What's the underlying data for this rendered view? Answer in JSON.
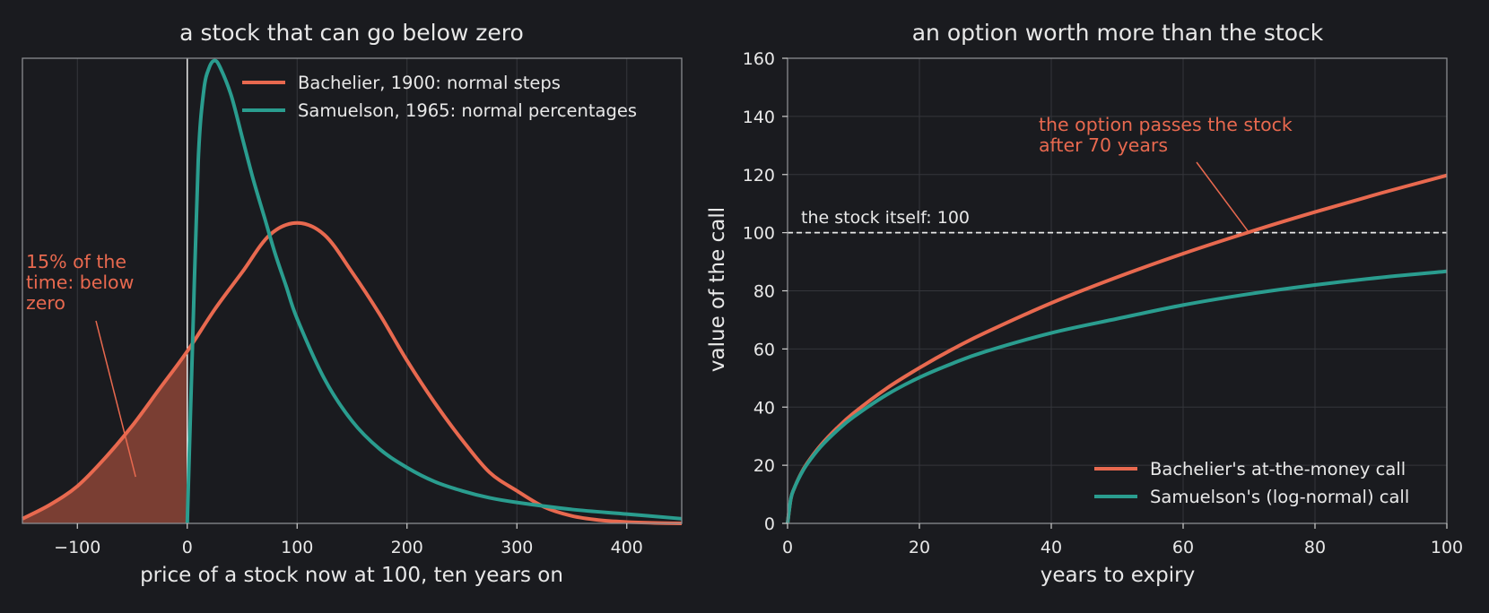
{
  "colors": {
    "background": "#1a1b1f",
    "bachelier": "#e8694f",
    "samuelson": "#2a9d8f",
    "shade": "#7a3e33",
    "text": "#e8e8e8",
    "grid": "#34363b"
  },
  "chart_data": [
    {
      "type": "line",
      "title": "a stock that can go below zero",
      "xlabel": "price of a stock now at 100, ten years on",
      "ylabel": "",
      "xlim": [
        -150,
        450
      ],
      "ylim": [
        0,
        1
      ],
      "xticks": [
        -100,
        0,
        100,
        200,
        300,
        400
      ],
      "xtick_labels": [
        "−100",
        "0",
        "100",
        "200",
        "300",
        "400"
      ],
      "yticks_shown": false,
      "grid": true,
      "legend_placement": "top-right",
      "series": [
        {
          "name": "Bachelier, 1900: normal steps",
          "color": "#e8694f",
          "x": [
            -150,
            -125,
            -100,
            -75,
            -50,
            -25,
            0,
            25,
            50,
            75,
            100,
            125,
            150,
            175,
            200,
            225,
            250,
            275,
            300,
            325,
            350,
            375,
            400,
            425,
            450
          ],
          "y": [
            0.01,
            0.04,
            0.08,
            0.14,
            0.21,
            0.29,
            0.37,
            0.46,
            0.54,
            0.62,
            0.646,
            0.62,
            0.54,
            0.45,
            0.35,
            0.26,
            0.18,
            0.11,
            0.07,
            0.035,
            0.016,
            0.007,
            0.003,
            0.001,
            0.0
          ]
        },
        {
          "name": "Samuelson, 1965: normal percentages",
          "color": "#2a9d8f",
          "x": [
            0,
            5,
            10,
            15,
            20,
            25,
            30,
            40,
            50,
            60,
            70,
            80,
            90,
            100,
            125,
            150,
            175,
            200,
            225,
            250,
            275,
            300,
            350,
            400,
            450
          ],
          "y": [
            0.0,
            0.4,
            0.78,
            0.93,
            0.98,
            0.995,
            0.98,
            0.92,
            0.83,
            0.74,
            0.66,
            0.58,
            0.51,
            0.44,
            0.31,
            0.22,
            0.16,
            0.12,
            0.09,
            0.07,
            0.055,
            0.045,
            0.03,
            0.02,
            0.01
          ]
        }
      ],
      "shaded_region": {
        "series": "Bachelier, 1900: normal steps",
        "x_from": -150,
        "x_to": 0
      },
      "vline_x": 0,
      "annotation": {
        "lines": [
          "15% of the",
          "time: below",
          "zero"
        ],
        "points_to_x": -47,
        "points_to_y": 0.1
      }
    },
    {
      "type": "line",
      "title": "an option worth more than the stock",
      "xlabel": "years to expiry",
      "ylabel": "value of the call",
      "xlim": [
        0,
        100
      ],
      "ylim": [
        0,
        160
      ],
      "xticks": [
        0,
        20,
        40,
        60,
        80,
        100
      ],
      "yticks": [
        0,
        20,
        40,
        60,
        80,
        100,
        120,
        140,
        160
      ],
      "grid": true,
      "legend_placement": "bottom-right",
      "series": [
        {
          "name": "Bachelier's at-the-money call",
          "color": "#e8694f",
          "x": [
            0,
            0.5,
            1,
            2,
            3,
            5,
            7.5,
            10,
            15,
            20,
            25,
            30,
            40,
            50,
            60,
            70,
            80,
            90,
            100
          ],
          "y": [
            0,
            8.5,
            12,
            17,
            20.8,
            26.8,
            32.8,
            37.9,
            46.4,
            53.5,
            59.9,
            65.6,
            75.8,
            84.7,
            92.8,
            100.2,
            107.1,
            113.6,
            119.7
          ]
        },
        {
          "name": "Samuelson's (log-normal) call",
          "color": "#2a9d8f",
          "x": [
            0,
            0.5,
            1,
            2,
            3,
            5,
            7.5,
            10,
            15,
            20,
            25,
            30,
            40,
            50,
            60,
            70,
            80,
            90,
            100
          ],
          "y": [
            0,
            8.5,
            12,
            16.8,
            20.5,
            26.3,
            31.9,
            36.6,
            44.2,
            50.2,
            55.0,
            59.1,
            65.5,
            70.4,
            75.1,
            78.9,
            82.0,
            84.6,
            86.7
          ]
        }
      ],
      "reference_line": {
        "y": 100,
        "label": "the stock itself: 100"
      },
      "annotation": {
        "lines": [
          "the option passes the stock",
          "after 70 years"
        ],
        "points_to_x": 70,
        "points_to_y": 100
      }
    }
  ]
}
